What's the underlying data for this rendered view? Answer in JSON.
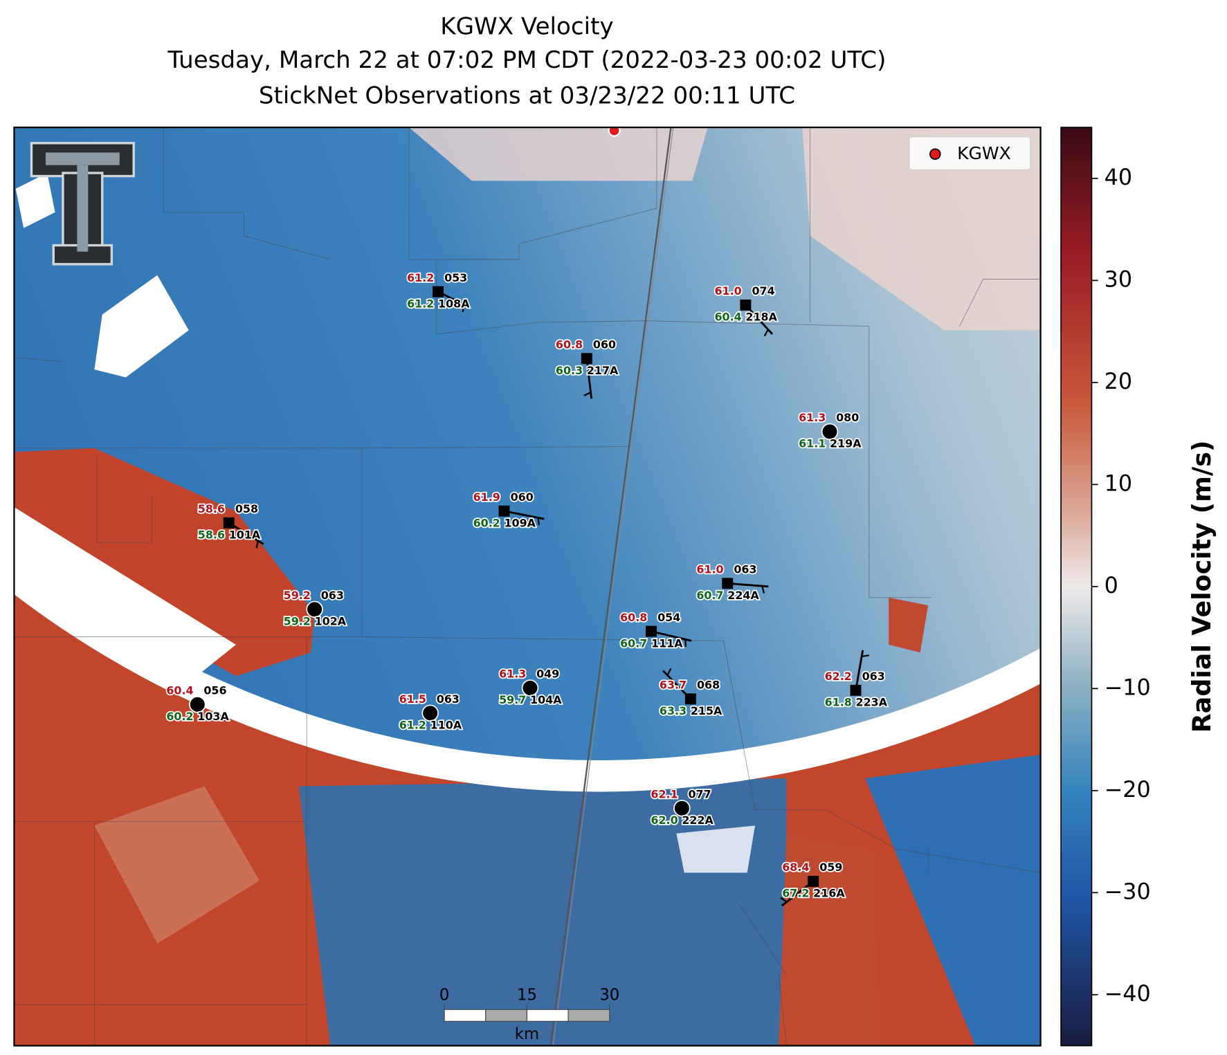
{
  "title": "KGWX Velocity",
  "subtitle": "Tuesday, March 22 at 07:02 PM CDT (2022-03-23 00:02 UTC)",
  "observations_title": "StickNet Observations at 03/23/22 00:11 UTC",
  "legend": {
    "label": "KGWX"
  },
  "colorbar": {
    "label": "Radial Velocity (m/s)",
    "lim": [
      -45,
      45
    ],
    "ticks": [
      40,
      30,
      20,
      10,
      0,
      {
        "value": -10,
        "label": "−10"
      },
      {
        "value": -20,
        "label": "−20"
      },
      {
        "value": -30,
        "label": "−30"
      },
      {
        "value": -40,
        "label": "−40"
      }
    ]
  },
  "scale_bar": {
    "ticks": [
      0,
      15,
      30
    ],
    "unit": "km"
  },
  "stations": [
    {
      "id": "108A",
      "temperature": "61.2",
      "dewpoint": "61.2",
      "code": "053"
    },
    {
      "id": "218A",
      "temperature": "61.0",
      "dewpoint": "60.4",
      "code": "074"
    },
    {
      "id": "217A",
      "temperature": "60.8",
      "dewpoint": "60.3",
      "code": "060"
    },
    {
      "id": "219A",
      "temperature": "61.3",
      "dewpoint": "61.1",
      "code": "080"
    },
    {
      "id": "101A",
      "temperature": "58.6",
      "dewpoint": "58.6",
      "code": "058"
    },
    {
      "id": "109A",
      "temperature": "61.9",
      "dewpoint": "60.2",
      "code": "060"
    },
    {
      "id": "224A",
      "temperature": "61.0",
      "dewpoint": "60.7",
      "code": "063"
    },
    {
      "id": "102A",
      "temperature": "59.2",
      "dewpoint": "59.2",
      "code": "063"
    },
    {
      "id": "111A",
      "temperature": "60.8",
      "dewpoint": "60.7",
      "code": "054"
    },
    {
      "id": "215A",
      "temperature": "63.7",
      "dewpoint": "63.3",
      "code": "068"
    },
    {
      "id": "223A",
      "temperature": "62.2",
      "dewpoint": "61.8",
      "code": "063"
    },
    {
      "id": "104A",
      "temperature": "61.3",
      "dewpoint": "59.7",
      "code": "049"
    },
    {
      "id": "110A",
      "temperature": "61.5",
      "dewpoint": "61.2",
      "code": "063"
    },
    {
      "id": "103A",
      "temperature": "60.4",
      "dewpoint": "60.2",
      "code": "056"
    },
    {
      "id": "222A",
      "temperature": "62.1",
      "dewpoint": "62.0",
      "code": "077"
    },
    {
      "id": "216A",
      "temperature": "68.4",
      "dewpoint": "67.2",
      "code": "059"
    }
  ]
}
